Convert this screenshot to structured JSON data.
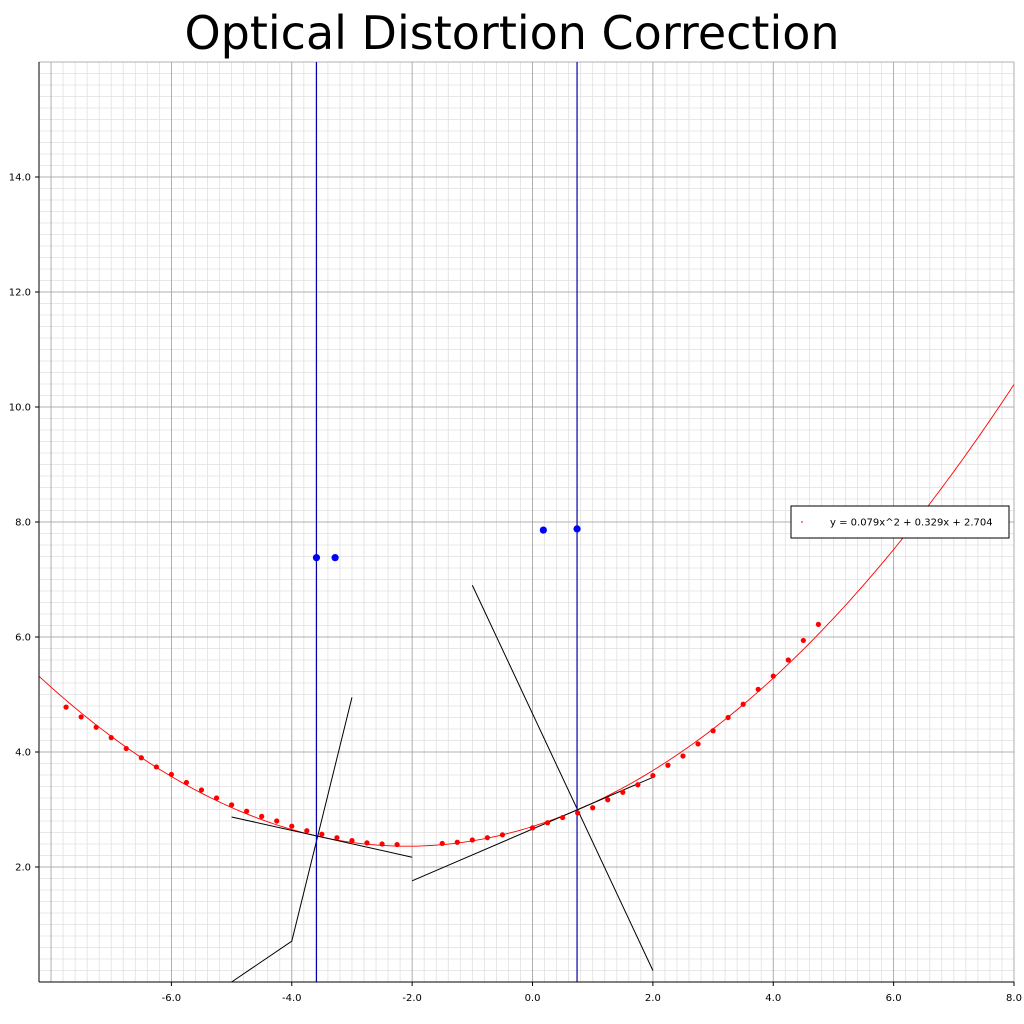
{
  "chart_data": {
    "type": "scatter",
    "title": "Optical Distortion Correction",
    "xlim": [
      -8.2,
      8.0
    ],
    "ylim": [
      0.0,
      16.0
    ],
    "grid": true,
    "legend_placement": "right",
    "x_ticks": [
      "-6.0",
      "-4.0",
      "-2.0",
      "0.0",
      "2.0",
      "4.0",
      "6.0",
      "8.0"
    ],
    "y_ticks": [
      "2.0",
      "4.0",
      "6.0",
      "8.0",
      "10.0",
      "12.0",
      "14.0"
    ],
    "fit": {
      "label": "y = 0.079x^2 + 0.329x + 2.704",
      "a": 0.079,
      "b": 0.329,
      "c": 2.704,
      "color": "#ff0000"
    },
    "samples": {
      "color": "#ff0000",
      "x": [
        -7.75,
        -7.5,
        -7.25,
        -7.0,
        -6.75,
        -6.5,
        -6.25,
        -6.0,
        -5.75,
        -5.5,
        -5.25,
        -5.0,
        -4.75,
        -4.5,
        -4.25,
        -4.0,
        -3.75,
        -3.5,
        -3.25,
        -3.0,
        -2.75,
        -2.5,
        -2.25,
        -1.5,
        -1.25,
        -1.0,
        -0.75,
        -0.5,
        0.0,
        0.25,
        0.5,
        0.75,
        1.0,
        1.25,
        1.5,
        1.75,
        2.0,
        2.25,
        2.5,
        2.75,
        3.0,
        3.25,
        3.5,
        3.75,
        4.0,
        4.25,
        4.5,
        4.75
      ],
      "y": [
        4.78,
        4.61,
        4.43,
        4.25,
        4.06,
        3.9,
        3.74,
        3.61,
        3.47,
        3.34,
        3.2,
        3.08,
        2.97,
        2.88,
        2.8,
        2.71,
        2.63,
        2.57,
        2.51,
        2.46,
        2.42,
        2.4,
        2.39,
        2.41,
        2.43,
        2.47,
        2.51,
        2.56,
        2.68,
        2.77,
        2.86,
        2.94,
        3.03,
        3.17,
        3.3,
        3.43,
        3.59,
        3.77,
        3.93,
        4.14,
        4.37,
        4.6,
        4.83,
        5.09,
        5.32,
        5.6,
        5.94,
        6.22
      ]
    },
    "markers": {
      "color": "#0000ff",
      "points": [
        {
          "x": -3.59,
          "y": 7.38
        },
        {
          "x": -3.28,
          "y": 7.38
        },
        {
          "x": 0.18,
          "y": 7.86
        },
        {
          "x": 0.74,
          "y": 7.88
        }
      ]
    },
    "vertical_lines": {
      "color": "#0000aa",
      "x": [
        -3.59,
        0.74
      ]
    },
    "segments": {
      "color": "#000000",
      "lines": [
        {
          "x": [
            -5.0,
            -4.0,
            -3.0
          ],
          "y": [
            0.0,
            0.71,
            4.95
          ]
        },
        {
          "x": [
            -5.0,
            -2.0
          ],
          "y": [
            2.87,
            2.17
          ]
        },
        {
          "x": [
            -2.0,
            2.0
          ],
          "y": [
            1.76,
            3.56
          ]
        },
        {
          "x": [
            -1.0,
            2.0
          ],
          "y": [
            6.9,
            0.2
          ]
        }
      ]
    }
  }
}
